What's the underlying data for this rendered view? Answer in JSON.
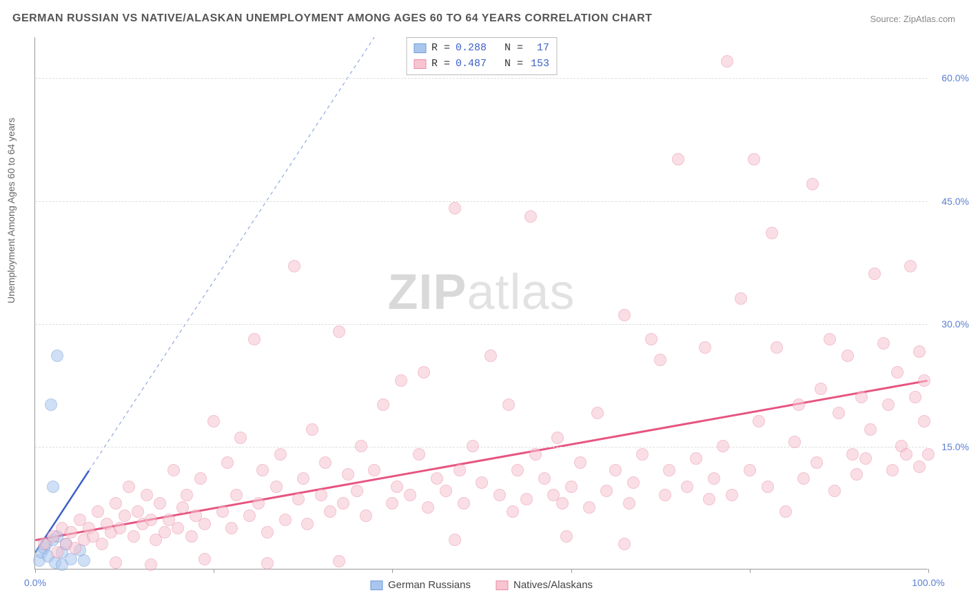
{
  "title": "GERMAN RUSSIAN VS NATIVE/ALASKAN UNEMPLOYMENT AMONG AGES 60 TO 64 YEARS CORRELATION CHART",
  "source": "Source: ZipAtlas.com",
  "ylabel": "Unemployment Among Ages 60 to 64 years",
  "watermark_a": "ZIP",
  "watermark_b": "atlas",
  "chart": {
    "type": "scatter",
    "xlim": [
      0,
      100
    ],
    "ylim": [
      0,
      65
    ],
    "xticks": [
      0,
      20,
      40,
      60,
      80,
      100
    ],
    "xtick_labels": {
      "0": "0.0%",
      "100": "100.0%"
    },
    "yticks": [
      15,
      30,
      45,
      60
    ],
    "ytick_labels": {
      "15": "15.0%",
      "30": "30.0%",
      "45": "45.0%",
      "60": "60.0%"
    },
    "background_color": "#ffffff",
    "grid_color": "#dddddd",
    "axis_color": "#999999",
    "marker_radius": 9,
    "marker_opacity": 0.55,
    "series": [
      {
        "name": "German Russians",
        "label": "German Russians",
        "color_fill": "#a9c6ed",
        "color_stroke": "#6f9cd8",
        "R": "0.288",
        "N": "17",
        "trend": {
          "x1": 0,
          "y1": 2,
          "x2": 6,
          "y2": 12,
          "color": "#3b5fc9",
          "width": 2.5,
          "dash": "none"
        },
        "trend_ext": {
          "x1": 6,
          "y1": 12,
          "x2": 38,
          "y2": 65,
          "color": "#90a8e0",
          "width": 1.2,
          "dash": "5,5"
        },
        "points": [
          [
            0.5,
            1
          ],
          [
            0.7,
            2
          ],
          [
            1,
            2.5
          ],
          [
            1.2,
            3
          ],
          [
            1.5,
            1.5
          ],
          [
            2,
            3.5
          ],
          [
            2.2,
            0.8
          ],
          [
            2.5,
            4
          ],
          [
            3,
            0.5
          ],
          [
            3,
            2
          ],
          [
            3.5,
            3
          ],
          [
            4,
            1.2
          ],
          [
            5,
            2.3
          ],
          [
            5.5,
            1
          ],
          [
            2,
            10
          ],
          [
            2.5,
            26
          ],
          [
            1.8,
            20
          ]
        ]
      },
      {
        "name": "Natives/Alaskans",
        "label": "Natives/Alaskans",
        "color_fill": "#f7c4d1",
        "color_stroke": "#e88fa8",
        "R": "0.487",
        "N": "153",
        "trend": {
          "x1": 0,
          "y1": 3.5,
          "x2": 100,
          "y2": 23,
          "color": "#e75480",
          "width": 3,
          "dash": "none"
        },
        "points": [
          [
            1,
            3
          ],
          [
            2,
            4
          ],
          [
            2.5,
            2
          ],
          [
            3,
            5
          ],
          [
            3.5,
            3
          ],
          [
            4,
            4.5
          ],
          [
            4.5,
            2.5
          ],
          [
            5,
            6
          ],
          [
            5.5,
            3.5
          ],
          [
            6,
            5
          ],
          [
            6.5,
            4
          ],
          [
            7,
            7
          ],
          [
            7.5,
            3
          ],
          [
            8,
            5.5
          ],
          [
            8.5,
            4.5
          ],
          [
            9,
            8
          ],
          [
            9.5,
            5
          ],
          [
            10,
            6.5
          ],
          [
            10.5,
            10
          ],
          [
            11,
            4
          ],
          [
            11.5,
            7
          ],
          [
            12,
            5.5
          ],
          [
            12.5,
            9
          ],
          [
            13,
            6
          ],
          [
            13.5,
            3.5
          ],
          [
            14,
            8
          ],
          [
            14.5,
            4.5
          ],
          [
            15,
            6
          ],
          [
            15.5,
            12
          ],
          [
            16,
            5
          ],
          [
            16.5,
            7.5
          ],
          [
            17,
            9
          ],
          [
            17.5,
            4
          ],
          [
            18,
            6.5
          ],
          [
            18.5,
            11
          ],
          [
            19,
            5.5
          ],
          [
            20,
            18
          ],
          [
            21,
            7
          ],
          [
            21.5,
            13
          ],
          [
            22,
            5
          ],
          [
            22.5,
            9
          ],
          [
            23,
            16
          ],
          [
            24,
            6.5
          ],
          [
            24.5,
            28
          ],
          [
            25,
            8
          ],
          [
            25.5,
            12
          ],
          [
            26,
            4.5
          ],
          [
            27,
            10
          ],
          [
            27.5,
            14
          ],
          [
            28,
            6
          ],
          [
            29,
            37
          ],
          [
            29.5,
            8.5
          ],
          [
            30,
            11
          ],
          [
            30.5,
            5.5
          ],
          [
            31,
            17
          ],
          [
            32,
            9
          ],
          [
            32.5,
            13
          ],
          [
            33,
            7
          ],
          [
            34,
            29
          ],
          [
            34.5,
            8
          ],
          [
            35,
            11.5
          ],
          [
            36,
            9.5
          ],
          [
            36.5,
            15
          ],
          [
            37,
            6.5
          ],
          [
            38,
            12
          ],
          [
            39,
            20
          ],
          [
            40,
            8
          ],
          [
            40.5,
            10
          ],
          [
            41,
            23
          ],
          [
            42,
            9
          ],
          [
            43,
            14
          ],
          [
            43.5,
            24
          ],
          [
            44,
            7.5
          ],
          [
            45,
            11
          ],
          [
            46,
            9.5
          ],
          [
            47,
            44
          ],
          [
            47.5,
            12
          ],
          [
            48,
            8
          ],
          [
            49,
            15
          ],
          [
            50,
            10.5
          ],
          [
            51,
            26
          ],
          [
            52,
            9
          ],
          [
            53,
            20
          ],
          [
            53.5,
            7
          ],
          [
            54,
            12
          ],
          [
            55,
            8.5
          ],
          [
            55.5,
            43
          ],
          [
            56,
            14
          ],
          [
            57,
            11
          ],
          [
            58,
            9
          ],
          [
            58.5,
            16
          ],
          [
            59,
            8
          ],
          [
            60,
            10
          ],
          [
            61,
            13
          ],
          [
            62,
            7.5
          ],
          [
            63,
            19
          ],
          [
            64,
            9.5
          ],
          [
            65,
            12
          ],
          [
            66,
            31
          ],
          [
            66.5,
            8
          ],
          [
            67,
            10.5
          ],
          [
            68,
            14
          ],
          [
            69,
            28
          ],
          [
            70,
            25.5
          ],
          [
            70.5,
            9
          ],
          [
            71,
            12
          ],
          [
            72,
            50
          ],
          [
            73,
            10
          ],
          [
            74,
            13.5
          ],
          [
            75,
            27
          ],
          [
            75.5,
            8.5
          ],
          [
            76,
            11
          ],
          [
            77,
            15
          ],
          [
            77.5,
            62
          ],
          [
            78,
            9
          ],
          [
            79,
            33
          ],
          [
            80,
            12
          ],
          [
            80.5,
            50
          ],
          [
            81,
            18
          ],
          [
            82,
            10
          ],
          [
            82.5,
            41
          ],
          [
            83,
            27
          ],
          [
            84,
            7
          ],
          [
            85,
            15.5
          ],
          [
            85.5,
            20
          ],
          [
            86,
            11
          ],
          [
            87,
            47
          ],
          [
            87.5,
            13
          ],
          [
            88,
            22
          ],
          [
            89,
            28
          ],
          [
            89.5,
            9.5
          ],
          [
            90,
            19
          ],
          [
            91,
            26
          ],
          [
            91.5,
            14
          ],
          [
            92,
            11.5
          ],
          [
            92.5,
            21
          ],
          [
            93,
            13.5
          ],
          [
            93.5,
            17
          ],
          [
            94,
            36
          ],
          [
            95,
            27.5
          ],
          [
            95.5,
            20
          ],
          [
            96,
            12
          ],
          [
            96.5,
            24
          ],
          [
            97,
            15
          ],
          [
            97.5,
            14
          ],
          [
            98,
            37
          ],
          [
            98.5,
            21
          ],
          [
            99,
            26.5
          ],
          [
            99,
            12.5
          ],
          [
            99.5,
            18
          ],
          [
            99.5,
            23
          ],
          [
            100,
            14
          ],
          [
            9,
            0.8
          ],
          [
            13,
            0.5
          ],
          [
            19,
            1.2
          ],
          [
            26,
            0.7
          ],
          [
            34,
            0.9
          ],
          [
            47,
            3.5
          ],
          [
            59.5,
            4
          ],
          [
            66,
            3
          ]
        ]
      }
    ]
  }
}
